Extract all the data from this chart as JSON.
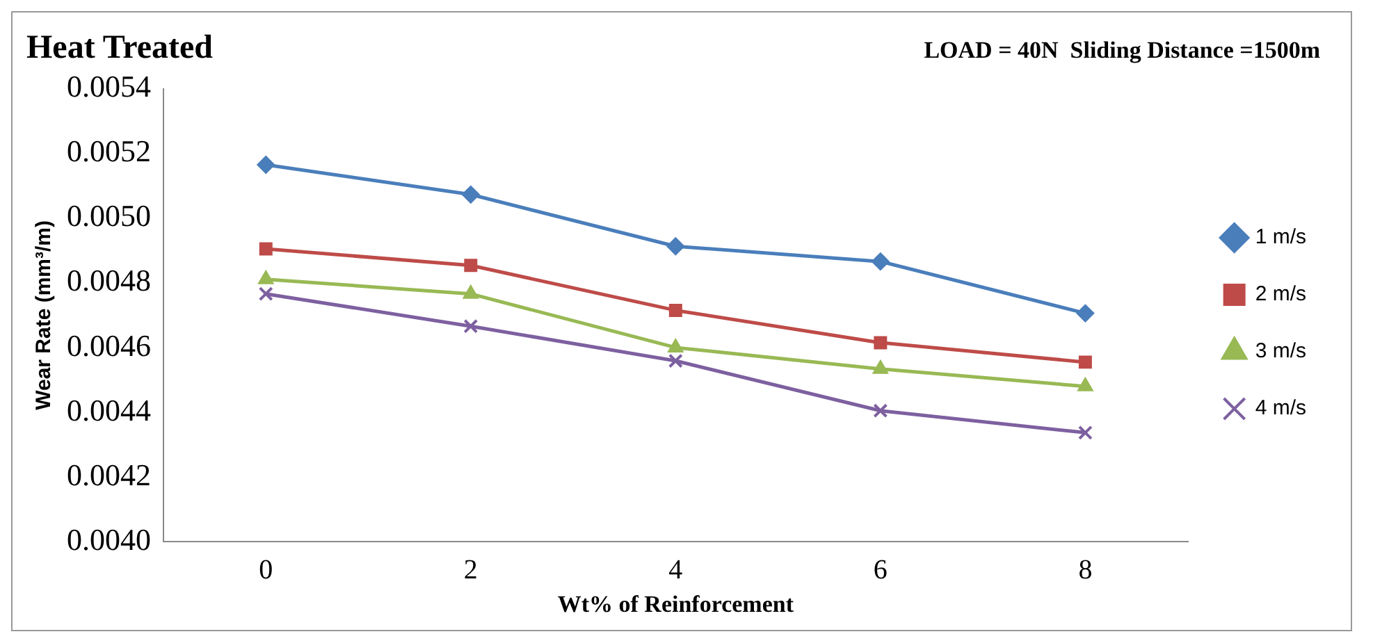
{
  "chart_data": {
    "type": "line",
    "title": "Heat Treated",
    "annotations": [
      "LOAD = 40N  Sliding Distance =1500m"
    ],
    "xlabel": "Wt% of Reinforcement",
    "ylabel": "Wear Rate (mm³/m)",
    "categories": [
      "0",
      "2",
      "4",
      "6",
      "8"
    ],
    "series": [
      {
        "name": "1 m/s",
        "color": "#4a7ebb",
        "marker": "diamond",
        "values": [
          0.005165,
          0.005073,
          0.004913,
          0.004866,
          0.004706
        ]
      },
      {
        "name": "2 m/s",
        "color": "#be4b48",
        "marker": "square",
        "values": [
          0.004905,
          0.004854,
          0.004715,
          0.004615,
          0.004555
        ]
      },
      {
        "name": "3 m/s",
        "color": "#98b954",
        "marker": "triangle",
        "values": [
          0.004811,
          0.004766,
          0.0046,
          0.004534,
          0.00448
        ]
      },
      {
        "name": "4 m/s",
        "color": "#7d60a0",
        "marker": "cross",
        "values": [
          0.004766,
          0.004666,
          0.004559,
          0.004405,
          0.004337
        ]
      }
    ],
    "ylim": [
      0.004,
      0.0054
    ],
    "yticks": [
      {
        "value": 0.004,
        "label": "0.0040"
      },
      {
        "value": 0.0042,
        "label": "0.0042"
      },
      {
        "value": 0.0044,
        "label": "0.0044"
      },
      {
        "value": 0.0046,
        "label": "0.0046"
      },
      {
        "value": 0.0048,
        "label": "0.0048"
      },
      {
        "value": 0.005,
        "label": "0.0050"
      },
      {
        "value": 0.0052,
        "label": "0.0052"
      },
      {
        "value": 0.0054,
        "label": "0.0054"
      }
    ],
    "grid": false,
    "legend": "right",
    "line_style": "solid"
  }
}
